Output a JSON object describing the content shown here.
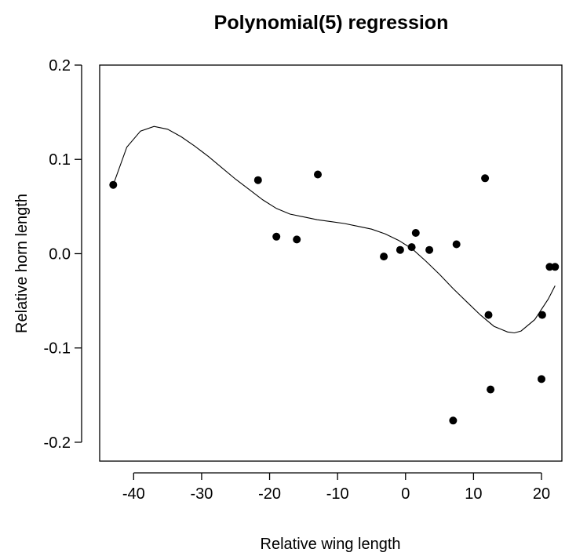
{
  "chart_data": {
    "type": "scatter",
    "title": "Polynomial(5) regression",
    "xlabel": "Relative wing length",
    "ylabel": "Relative horn length",
    "xlim": [
      -45,
      23
    ],
    "ylim": [
      -0.22,
      0.2
    ],
    "x_ticks": [
      -40,
      -30,
      -20,
      -10,
      0,
      10,
      20
    ],
    "x_tick_labels": [
      "-40",
      "-30",
      "-20",
      "-10",
      "0",
      "10",
      "20"
    ],
    "y_ticks": [
      -0.2,
      -0.1,
      0.0,
      0.1,
      0.2
    ],
    "y_tick_labels": [
      "-0.2",
      "-0.1",
      "0.0",
      "0.1",
      "0.2"
    ],
    "grid": false,
    "legend": "none",
    "series": [
      {
        "type": "scatter",
        "points": [
          [
            -43.0,
            0.073
          ],
          [
            -21.7,
            0.078
          ],
          [
            -19.0,
            0.018
          ],
          [
            -16.0,
            0.015
          ],
          [
            -12.9,
            0.084
          ],
          [
            -3.2,
            -0.003
          ],
          [
            -0.8,
            0.004
          ],
          [
            0.9,
            0.007
          ],
          [
            1.5,
            0.022
          ],
          [
            3.5,
            0.004
          ],
          [
            7.0,
            -0.177
          ],
          [
            7.5,
            0.01
          ],
          [
            11.7,
            0.08
          ],
          [
            12.2,
            -0.065
          ],
          [
            12.5,
            -0.144
          ],
          [
            20.0,
            -0.133
          ],
          [
            20.1,
            -0.065
          ],
          [
            21.2,
            -0.014
          ],
          [
            22.0,
            -0.014
          ]
        ]
      },
      {
        "type": "line",
        "points": [
          [
            -43,
            0.073
          ],
          [
            -41,
            0.113
          ],
          [
            -39,
            0.13
          ],
          [
            -37,
            0.135
          ],
          [
            -35,
            0.132
          ],
          [
            -33,
            0.124
          ],
          [
            -31,
            0.114
          ],
          [
            -29,
            0.103
          ],
          [
            -27,
            0.091
          ],
          [
            -25,
            0.079
          ],
          [
            -23,
            0.068
          ],
          [
            -21,
            0.057
          ],
          [
            -19,
            0.048
          ],
          [
            -17,
            0.042
          ],
          [
            -15,
            0.039
          ],
          [
            -13,
            0.036
          ],
          [
            -11,
            0.034
          ],
          [
            -9,
            0.032
          ],
          [
            -7,
            0.029
          ],
          [
            -5,
            0.026
          ],
          [
            -3,
            0.021
          ],
          [
            -1,
            0.014
          ],
          [
            1,
            0.005
          ],
          [
            3,
            -0.008
          ],
          [
            5,
            -0.022
          ],
          [
            7,
            -0.037
          ],
          [
            9,
            -0.051
          ],
          [
            11,
            -0.065
          ],
          [
            13,
            -0.077
          ],
          [
            15,
            -0.083
          ],
          [
            16,
            -0.084
          ],
          [
            17,
            -0.082
          ],
          [
            19,
            -0.07
          ],
          [
            21,
            -0.048
          ],
          [
            22,
            -0.034
          ]
        ]
      }
    ]
  }
}
